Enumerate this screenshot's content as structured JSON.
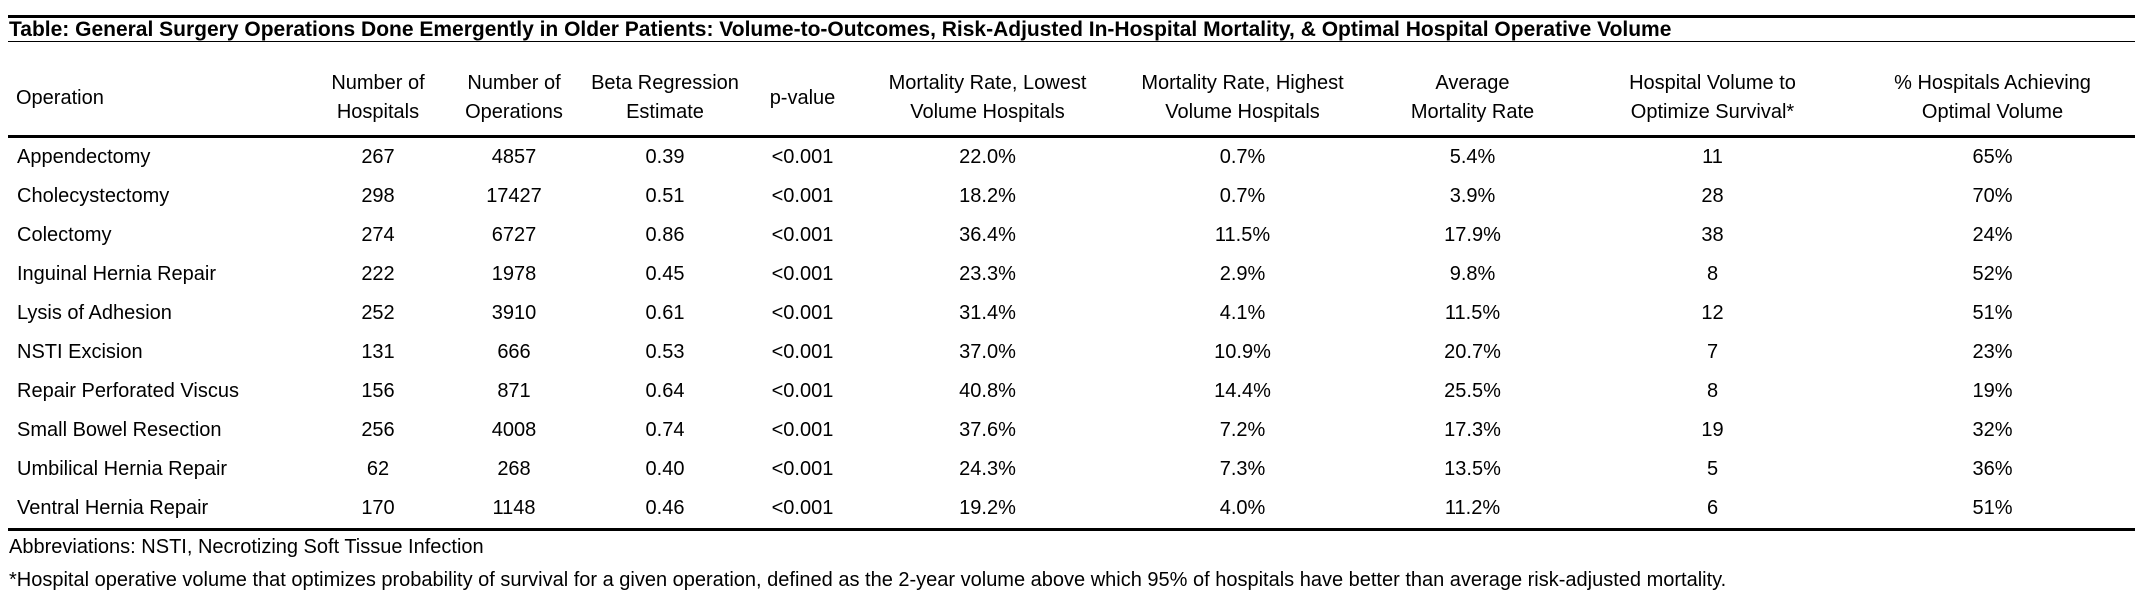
{
  "title": "Table: General Surgery Operations Done Emergently in Older Patients: Volume-to-Outcomes, Risk-Adjusted In-Hospital Mortality, & Optimal Hospital Operative Volume",
  "columns": [
    {
      "line1": "",
      "line2": "Operation"
    },
    {
      "line1": "Number of",
      "line2": "Hospitals"
    },
    {
      "line1": "Number of",
      "line2": "Operations"
    },
    {
      "line1": "Beta Regression",
      "line2": "Estimate"
    },
    {
      "line1": "",
      "line2": "p-value"
    },
    {
      "line1": "Mortality Rate, Lowest",
      "line2": "Volume Hospitals"
    },
    {
      "line1": "Mortality Rate, Highest",
      "line2": "Volume Hospitals"
    },
    {
      "line1": "Average",
      "line2": "Mortality Rate"
    },
    {
      "line1": "Hospital Volume to",
      "line2": "Optimize Survival*"
    },
    {
      "line1": "% Hospitals Achieving",
      "line2": "Optimal Volume"
    }
  ],
  "rows": [
    [
      "Appendectomy",
      "267",
      "4857",
      "0.39",
      "<0.001",
      "22.0%",
      "0.7%",
      "5.4%",
      "11",
      "65%"
    ],
    [
      "Cholecystectomy",
      "298",
      "17427",
      "0.51",
      "<0.001",
      "18.2%",
      "0.7%",
      "3.9%",
      "28",
      "70%"
    ],
    [
      "Colectomy",
      "274",
      "6727",
      "0.86",
      "<0.001",
      "36.4%",
      "11.5%",
      "17.9%",
      "38",
      "24%"
    ],
    [
      "Inguinal Hernia Repair",
      "222",
      "1978",
      "0.45",
      "<0.001",
      "23.3%",
      "2.9%",
      "9.8%",
      "8",
      "52%"
    ],
    [
      "Lysis of Adhesion",
      "252",
      "3910",
      "0.61",
      "<0.001",
      "31.4%",
      "4.1%",
      "11.5%",
      "12",
      "51%"
    ],
    [
      "NSTI Excision",
      "131",
      "666",
      "0.53",
      "<0.001",
      "37.0%",
      "10.9%",
      "20.7%",
      "7",
      "23%"
    ],
    [
      "Repair Perforated Viscus",
      "156",
      "871",
      "0.64",
      "<0.001",
      "40.8%",
      "14.4%",
      "25.5%",
      "8",
      "19%"
    ],
    [
      "Small Bowel Resection",
      "256",
      "4008",
      "0.74",
      "<0.001",
      "37.6%",
      "7.2%",
      "17.3%",
      "19",
      "32%"
    ],
    [
      "Umbilical Hernia Repair",
      "62",
      "268",
      "0.40",
      "<0.001",
      "24.3%",
      "7.3%",
      "13.5%",
      "5",
      "36%"
    ],
    [
      "Ventral Hernia Repair",
      "170",
      "1148",
      "0.46",
      "<0.001",
      "19.2%",
      "4.0%",
      "11.2%",
      "6",
      "51%"
    ]
  ],
  "footnotes": {
    "abbreviations": "Abbreviations: NSTI, Necrotizing Soft Tissue Infection",
    "asterisk": "*Hospital operative volume that optimizes probability of survival for a given operation, defined as the 2-year volume above which 95% of hospitals have better than average risk-adjusted mortality."
  }
}
